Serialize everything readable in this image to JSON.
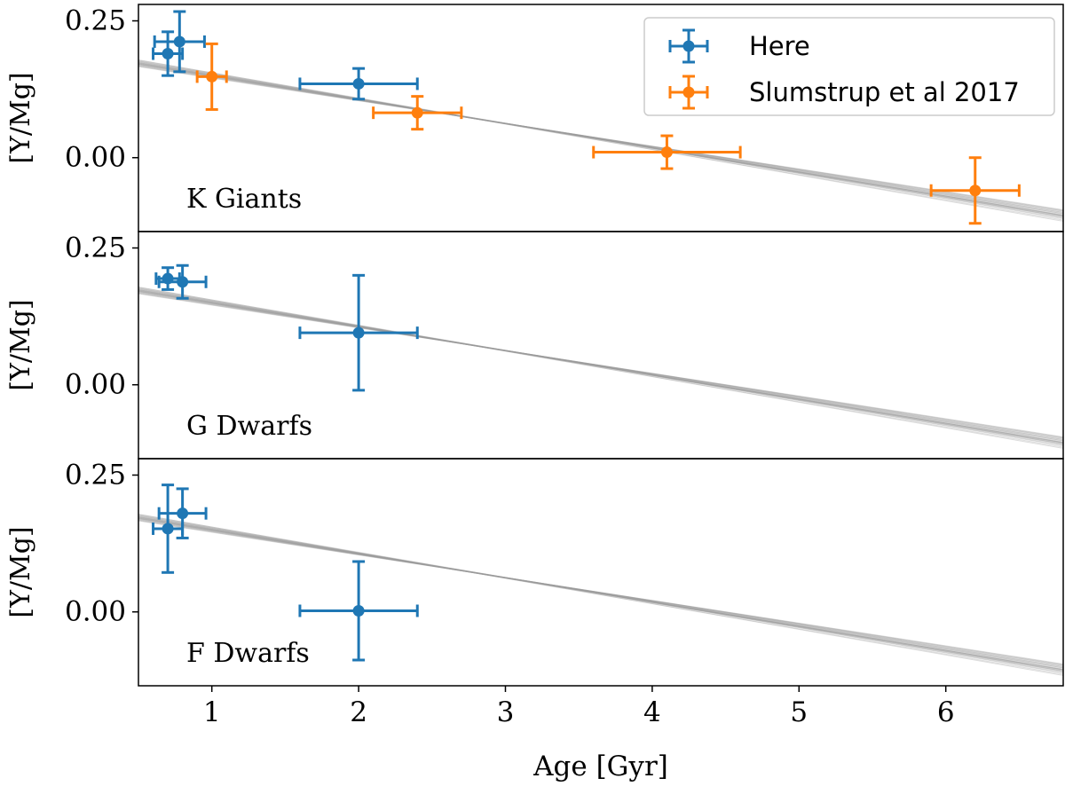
{
  "chart_data": {
    "type": "scatter",
    "xlabel": "Age [Gyr]",
    "xlim": [
      0.5,
      6.8
    ],
    "x_ticks": [
      1,
      2,
      3,
      4,
      5,
      6
    ],
    "x_tick_labels": [
      "1",
      "2",
      "3",
      "4",
      "5",
      "6"
    ],
    "ylabel": "[Y/Mg]",
    "ylim": [
      -0.135,
      0.28
    ],
    "y_ticks": [
      0.0,
      0.25
    ],
    "y_tick_labels": [
      "0.00",
      "0.25"
    ],
    "legend": {
      "placement": "top-right",
      "entries": [
        "Here",
        "Slumstrup et al 2017"
      ]
    },
    "colors": {
      "Here": "#1f77b4",
      "Slumstrup et al 2017": "#ff7f0e",
      "fit_lines": "#9a9a9a"
    },
    "fit_lines": {
      "description": "grey posterior linear fits",
      "intercepts": [
        0.195,
        0.198,
        0.192,
        0.2,
        0.189,
        0.197,
        0.193,
        0.202,
        0.187,
        0.196,
        0.194,
        0.191,
        0.199,
        0.19,
        0.196,
        0.193,
        0.201,
        0.188,
        0.195,
        0.192
      ],
      "slopes": [
        -0.0442,
        -0.0451,
        -0.043,
        -0.0462,
        -0.0421,
        -0.0448,
        -0.0437,
        -0.0468,
        -0.0415,
        -0.0444,
        -0.044,
        -0.0428,
        -0.0455,
        -0.0424,
        -0.0447,
        -0.0434,
        -0.046,
        -0.0418,
        -0.0443,
        -0.0433
      ]
    },
    "panels": [
      {
        "label": "K Giants",
        "series": [
          {
            "name": "Here",
            "points": [
              {
                "x": 0.7,
                "y": 0.19,
                "xerr": 0.1,
                "yerr": 0.04
              },
              {
                "x": 0.78,
                "y": 0.212,
                "xerr": 0.17,
                "yerr": 0.055
              },
              {
                "x": 2.0,
                "y": 0.135,
                "xerr": 0.4,
                "yerr": 0.028
              }
            ]
          },
          {
            "name": "Slumstrup et al 2017",
            "points": [
              {
                "x": 1.0,
                "y": 0.148,
                "xerr": 0.1,
                "yerr": 0.06
              },
              {
                "x": 2.4,
                "y": 0.082,
                "xerr": 0.3,
                "yerr": 0.03
              },
              {
                "x": 4.1,
                "y": 0.01,
                "xerr": 0.5,
                "yerr": 0.03
              },
              {
                "x": 6.2,
                "y": -0.06,
                "xerr": 0.3,
                "yerr": 0.06
              }
            ]
          }
        ]
      },
      {
        "label": "G Dwarfs",
        "series": [
          {
            "name": "Here",
            "points": [
              {
                "x": 0.7,
                "y": 0.194,
                "xerr": 0.08,
                "yerr": 0.02
              },
              {
                "x": 0.8,
                "y": 0.188,
                "xerr": 0.16,
                "yerr": 0.03
              },
              {
                "x": 2.0,
                "y": 0.095,
                "xerr": 0.4,
                "yerr": 0.105
              }
            ]
          }
        ]
      },
      {
        "label": "F Dwarfs",
        "series": [
          {
            "name": "Here",
            "points": [
              {
                "x": 0.7,
                "y": 0.152,
                "xerr": 0.1,
                "yerr": 0.08
              },
              {
                "x": 0.8,
                "y": 0.18,
                "xerr": 0.16,
                "yerr": 0.045
              },
              {
                "x": 2.0,
                "y": 0.002,
                "xerr": 0.4,
                "yerr": 0.09
              }
            ]
          }
        ]
      }
    ]
  }
}
